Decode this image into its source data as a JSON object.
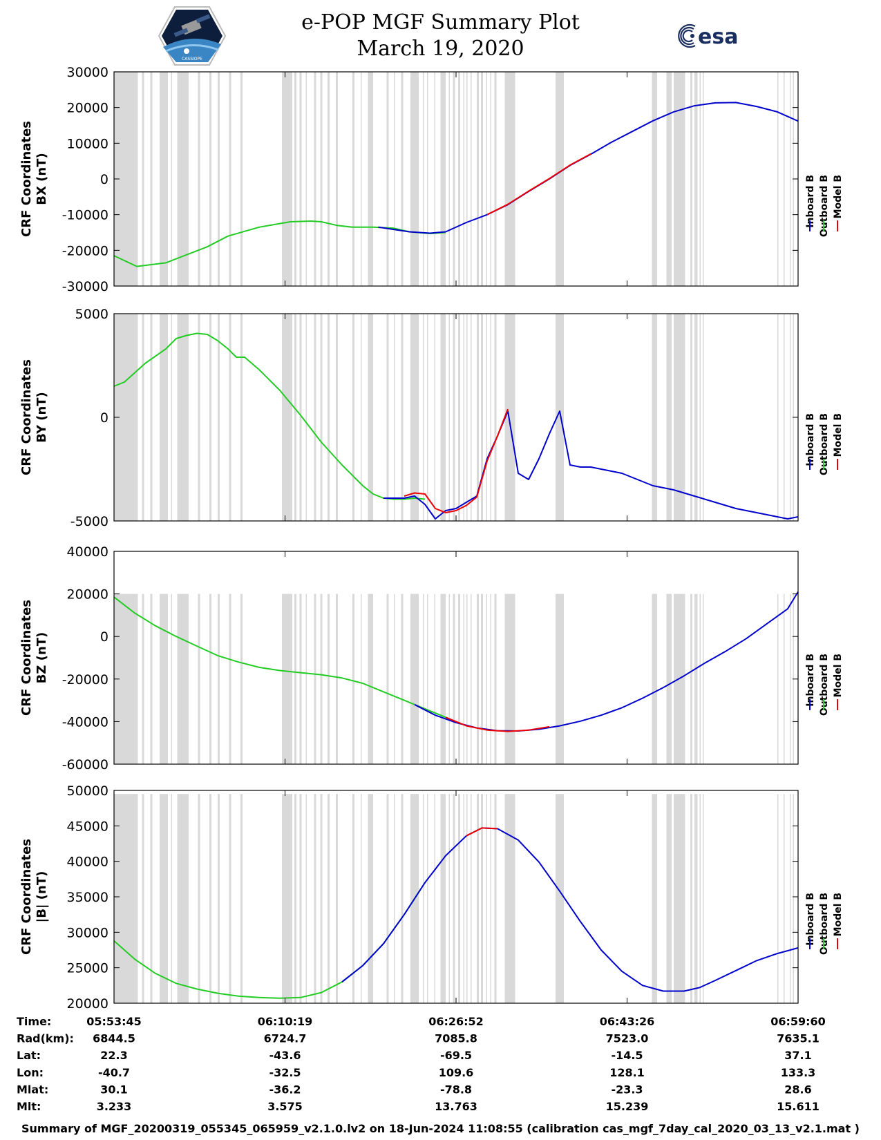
{
  "title": {
    "line1": "e-POP MGF Summary Plot",
    "line2": "March 19, 2020"
  },
  "logos": {
    "left_label": "CASSIOPE",
    "right_label": "esa"
  },
  "colors": {
    "inboard": "#0000cc",
    "outboard": "#22cc22",
    "model": "#ee0000",
    "gap_shading": "#d9d9d9"
  },
  "footer": "Summary of MGF_20200319_055345_065959_v2.1.0.lv2 on 18-Jun-2024 11:08:55 (calibration cas_mgf_7day_cal_2020_03_13_v2.1.mat )",
  "info_table": {
    "rows": [
      {
        "key": "Time:",
        "values": [
          "05:53:45",
          "06:10:19",
          "06:26:52",
          "06:43:26",
          "06:59:60"
        ]
      },
      {
        "key": "Rad(km):",
        "values": [
          "6844.5",
          "6724.7",
          "7085.8",
          "7523.0",
          "7635.1"
        ]
      },
      {
        "key": "Lat:",
        "values": [
          "22.3",
          "-43.6",
          "-69.5",
          "-14.5",
          "37.1"
        ]
      },
      {
        "key": "Lon:",
        "values": [
          "-40.7",
          "-32.5",
          "109.6",
          "128.1",
          "133.3"
        ]
      },
      {
        "key": "Mlat:",
        "values": [
          "30.1",
          "-36.2",
          "-78.8",
          "-23.3",
          "28.6"
        ]
      },
      {
        "key": "Mlt:",
        "values": [
          "3.233",
          "3.575",
          "13.763",
          "15.239",
          "15.611"
        ]
      }
    ]
  },
  "chart_data": [
    {
      "type": "line",
      "ylabel": [
        "CRF Coordinates",
        "BX (nT)"
      ],
      "xlim": [
        0,
        66
      ],
      "ylim": [
        -30000,
        30000
      ],
      "yticks": [
        30000,
        20000,
        10000,
        0,
        -10000,
        -20000,
        -30000
      ],
      "ytick_labels": [
        "30000",
        "20000",
        "10000",
        "0",
        "-10000",
        "-20000",
        "-30000"
      ],
      "legend": [
        "Inboard B",
        "Outboard B",
        "Model B"
      ],
      "shade_top": 30000,
      "series": [
        {
          "name": "Outboard B",
          "x": [
            0,
            2.2,
            5,
            9,
            11,
            14,
            17,
            19,
            20,
            21.5,
            23,
            25,
            27,
            28.5,
            30.5,
            32
          ],
          "y": [
            -21500,
            -24500,
            -23500,
            -19000,
            -16000,
            -13500,
            -12000,
            -11800,
            -12000,
            -13000,
            -13500,
            -13500,
            -13800,
            -14800,
            -15300,
            -15000
          ]
        },
        {
          "name": "Inboard B",
          "x": [
            25.5,
            28.5,
            30.5,
            32,
            34,
            36,
            38,
            40,
            42,
            44,
            46,
            48,
            50,
            52,
            54,
            56,
            58,
            60,
            62,
            64,
            66
          ],
          "y": [
            -13500,
            -14800,
            -15200,
            -14800,
            -12200,
            -10000,
            -7200,
            -3500,
            0,
            3800,
            6900,
            10300,
            13300,
            16300,
            18800,
            20500,
            21300,
            21400,
            20300,
            18800,
            16200
          ]
        },
        {
          "name": "Model B",
          "x": [
            36,
            38,
            40,
            42,
            44,
            46
          ],
          "y": [
            -10000,
            -7100,
            -3400,
            100,
            3900,
            7000
          ]
        }
      ]
    },
    {
      "type": "line",
      "ylabel": [
        "CRF Coordinates",
        "BY (nT)"
      ],
      "xlim": [
        0,
        66
      ],
      "ylim": [
        -5000,
        5000
      ],
      "yticks": [
        5000,
        0,
        -5000
      ],
      "ytick_labels": [
        "5000",
        "0",
        "-5000"
      ],
      "legend": [
        "Inboard B",
        "Outboard B",
        "Model B"
      ],
      "shade_top": 5000,
      "series": [
        {
          "name": "Outboard B",
          "x": [
            0,
            1,
            3,
            5,
            6,
            7,
            8,
            9,
            10,
            11,
            11.8,
            12.6,
            14,
            16,
            18,
            20,
            22,
            24,
            25,
            26,
            27,
            28,
            29,
            30
          ],
          "y": [
            1500,
            1700,
            2600,
            3300,
            3800,
            3950,
            4050,
            4000,
            3700,
            3300,
            2900,
            2900,
            2300,
            1300,
            100,
            -1200,
            -2300,
            -3300,
            -3700,
            -3900,
            -3950,
            -3950,
            -3900,
            -3950
          ]
        },
        {
          "name": "Inboard B",
          "x": [
            26,
            27,
            28,
            28.5,
            29,
            30,
            31,
            31.5,
            32,
            33,
            34,
            35,
            36,
            37,
            38,
            39,
            40,
            41,
            42,
            43,
            44,
            45,
            46,
            47,
            48,
            49,
            50,
            52,
            54,
            56,
            58,
            60,
            62,
            63,
            64,
            65,
            66
          ],
          "y": [
            -3900,
            -3900,
            -3900,
            -3850,
            -3800,
            -4200,
            -4900,
            -4700,
            -4500,
            -4400,
            -4100,
            -3800,
            -2000,
            -900,
            300,
            -2700,
            -3000,
            -2000,
            -800,
            300,
            -2300,
            -2400,
            -2400,
            -2500,
            -2600,
            -2700,
            -2900,
            -3300,
            -3500,
            -3800,
            -4100,
            -4400,
            -4600,
            -4700,
            -4800,
            -4900,
            -4800
          ]
        },
        {
          "name": "Model B",
          "x": [
            28,
            29,
            30,
            31,
            32,
            33,
            34,
            35,
            36,
            37,
            38
          ],
          "y": [
            -3800,
            -3650,
            -3700,
            -4400,
            -4600,
            -4500,
            -4250,
            -3850,
            -2100,
            -900,
            400
          ]
        }
      ]
    },
    {
      "type": "line",
      "ylabel": [
        "CRF Coordinates",
        "BZ (nT)"
      ],
      "xlim": [
        0,
        66
      ],
      "ylim": [
        -60000,
        40000
      ],
      "yticks": [
        40000,
        20000,
        0,
        -20000,
        -40000,
        -60000
      ],
      "ytick_labels": [
        "40000",
        "20000",
        "0",
        "-20000",
        "-40000",
        "-60000"
      ],
      "legend": [
        "Inboard B",
        "Outboard B",
        "Model B"
      ],
      "shade_top": 20000,
      "series": [
        {
          "name": "Outboard B",
          "x": [
            0,
            2,
            4,
            6,
            8,
            10,
            12,
            14,
            16,
            18,
            20,
            22,
            24,
            26,
            28,
            30,
            32
          ],
          "y": [
            18500,
            11000,
            5000,
            0,
            -4500,
            -9000,
            -12000,
            -14500,
            -16000,
            -17000,
            -18000,
            -19500,
            -22000,
            -26000,
            -30000,
            -34000,
            -38000
          ]
        },
        {
          "name": "Inboard B",
          "x": [
            29,
            31,
            33,
            35,
            37,
            39,
            41,
            43,
            45,
            47,
            49,
            51,
            53,
            55,
            57,
            59,
            61,
            63,
            65,
            66
          ],
          "y": [
            -32000,
            -37000,
            -40500,
            -43000,
            -44300,
            -44400,
            -43600,
            -42000,
            -39800,
            -37000,
            -33500,
            -29000,
            -24000,
            -18500,
            -12500,
            -7000,
            -1000,
            6000,
            13000,
            21000
          ]
        },
        {
          "name": "Model B",
          "x": [
            32,
            34,
            36,
            38,
            40,
            42
          ],
          "y": [
            -38000,
            -42000,
            -44000,
            -44600,
            -44000,
            -42400
          ]
        }
      ]
    },
    {
      "type": "line",
      "ylabel": [
        "CRF Coordinates",
        "|B| (nT)"
      ],
      "xlim": [
        0,
        66
      ],
      "ylim": [
        20000,
        50000
      ],
      "yticks": [
        50000,
        45000,
        40000,
        35000,
        30000,
        25000,
        20000
      ],
      "ytick_labels": [
        "50000",
        "45000",
        "40000",
        "35000",
        "30000",
        "25000",
        "20000"
      ],
      "legend": [
        "Inboard B",
        "Outboard B",
        "Model B"
      ],
      "shade_top": 49500,
      "series": [
        {
          "name": "Outboard B",
          "x": [
            0,
            2,
            4,
            6,
            8,
            10,
            12,
            14,
            16,
            18,
            20,
            22,
            24,
            26,
            28,
            30
          ],
          "y": [
            28800,
            26200,
            24200,
            22800,
            22000,
            21400,
            21000,
            20800,
            20700,
            20800,
            21500,
            23000,
            25300,
            28400,
            32500,
            37000
          ]
        },
        {
          "name": "Inboard B",
          "x": [
            22,
            24,
            26,
            28,
            30,
            32,
            34,
            35.5,
            37,
            39,
            41,
            43,
            45,
            47,
            49,
            51,
            53,
            55,
            56.5,
            58,
            60,
            62,
            64,
            66
          ],
          "y": [
            23000,
            25300,
            28400,
            32500,
            37000,
            40800,
            43600,
            44700,
            44600,
            43000,
            39900,
            35800,
            31500,
            27500,
            24500,
            22500,
            21700,
            21700,
            22200,
            23200,
            24600,
            26000,
            27000,
            27800
          ]
        },
        {
          "name": "Model B",
          "x": [
            34,
            35.5,
            37
          ],
          "y": [
            43600,
            44700,
            44600
          ]
        }
      ]
    }
  ],
  "shading_intervals": [
    [
      0,
      2.3
    ],
    [
      2.7,
      2.9
    ],
    [
      3.5,
      3.7
    ],
    [
      4.4,
      5.2
    ],
    [
      5.5,
      5.6
    ],
    [
      6.1,
      7.2
    ],
    [
      8.1,
      8.3
    ],
    [
      9.2,
      9.4
    ],
    [
      10.0,
      10.2
    ],
    [
      11.1,
      11.3
    ],
    [
      12.2,
      12.4
    ],
    [
      16.2,
      17.2
    ],
    [
      17.4,
      17.6
    ],
    [
      17.9,
      18.1
    ],
    [
      18.5,
      18.6
    ],
    [
      19.3,
      19.5
    ],
    [
      19.9,
      20.1
    ],
    [
      20.6,
      20.8
    ],
    [
      21.4,
      21.6
    ],
    [
      23.0,
      23.2
    ],
    [
      23.8,
      23.9
    ],
    [
      24.5,
      25.0
    ],
    [
      26.3,
      26.5
    ],
    [
      27.0,
      27.1
    ],
    [
      27.7,
      27.9
    ],
    [
      28.6,
      29.4
    ],
    [
      29.8,
      29.9
    ],
    [
      30.2,
      30.3
    ],
    [
      30.9,
      31.0
    ],
    [
      31.5,
      32.0
    ],
    [
      32.3,
      32.4
    ],
    [
      32.7,
      32.9
    ],
    [
      33.2,
      33.4
    ],
    [
      33.7,
      33.8
    ],
    [
      34.0,
      34.1
    ],
    [
      34.4,
      34.5
    ],
    [
      35.0,
      35.2
    ],
    [
      35.4,
      35.6
    ],
    [
      35.9,
      36.0
    ],
    [
      36.3,
      36.4
    ],
    [
      36.7,
      36.9
    ],
    [
      37.7,
      38.7
    ],
    [
      42.6,
      43.4
    ],
    [
      51.9,
      52.4
    ],
    [
      53.3,
      53.8
    ],
    [
      54.0,
      55.1
    ],
    [
      55.6,
      55.8
    ],
    [
      56.0,
      56.3
    ],
    [
      56.5,
      56.6
    ],
    [
      56.8,
      56.9
    ],
    [
      64.0,
      64.1
    ],
    [
      64.6,
      64.7
    ],
    [
      65.2,
      65.3
    ],
    [
      65.5,
      65.6
    ]
  ]
}
